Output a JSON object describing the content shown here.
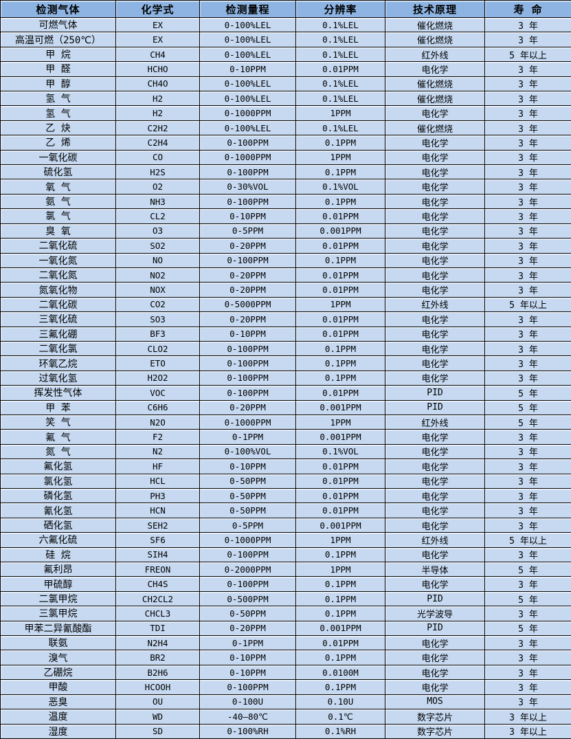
{
  "colors": {
    "header_bg": "#8db4e2",
    "row_bg": "#c6d9f1",
    "grid": "#000000",
    "text": "#000000"
  },
  "table": {
    "columns": [
      "检测气体",
      "化学式",
      "检测量程",
      "分辨率",
      "技术原理",
      "寿 命"
    ],
    "rows": [
      [
        "可燃气体",
        "EX",
        "0-100%LEL",
        "0.1%LEL",
        "催化燃烧",
        "3 年"
      ],
      [
        "高温可燃（250℃）",
        "EX",
        "0-100%LEL",
        "0.1%LEL",
        "催化燃烧",
        "3 年"
      ],
      [
        "甲 烷",
        "CH4",
        "0-100%LEL",
        "0.1%LEL",
        "红外线",
        "5 年以上"
      ],
      [
        "甲 醛",
        "HCHO",
        "0-10PPM",
        "0.01PPM",
        "电化学",
        "3 年"
      ],
      [
        "甲 醇",
        "CH4O",
        "0-100%LEL",
        "0.1%LEL",
        "催化燃烧",
        "3 年"
      ],
      [
        "氢 气",
        "H2",
        "0-100%LEL",
        "0.1%LEL",
        "催化燃烧",
        "3 年"
      ],
      [
        "氢 气",
        "H2",
        "0-1000PPM",
        "1PPM",
        "电化学",
        "3 年"
      ],
      [
        "乙 炔",
        "C2H2",
        "0-100%LEL",
        "0.1%LEL",
        "催化燃烧",
        "3 年"
      ],
      [
        "乙 烯",
        "C2H4",
        "0-100PPM",
        "0.1PPM",
        "电化学",
        "3 年"
      ],
      [
        "一氧化碳",
        "CO",
        "0-1000PPM",
        "1PPM",
        "电化学",
        "3 年"
      ],
      [
        "硫化氢",
        "H2S",
        "0-100PPM",
        "0.1PPM",
        "电化学",
        "3 年"
      ],
      [
        "氧 气",
        "O2",
        "0-30%VOL",
        "0.1%VOL",
        "电化学",
        "3 年"
      ],
      [
        "氨 气",
        "NH3",
        "0-100PPM",
        "0.1PPM",
        "电化学",
        "3 年"
      ],
      [
        "氯 气",
        "CL2",
        "0-10PPM",
        "0.01PPM",
        "电化学",
        "3 年"
      ],
      [
        "臭 氧",
        "O3",
        "0-5PPM",
        "0.001PPM",
        "电化学",
        "3 年"
      ],
      [
        "二氧化硫",
        "SO2",
        "0-20PPM",
        "0.01PPM",
        "电化学",
        "3 年"
      ],
      [
        "一氧化氮",
        "NO",
        "0-100PPM",
        "0.1PPM",
        "电化学",
        "3 年"
      ],
      [
        "二氧化氮",
        "NO2",
        "0-20PPM",
        "0.01PPM",
        "电化学",
        "3 年"
      ],
      [
        "氮氧化物",
        "NOX",
        "0-20PPM",
        "0.01PPM",
        "电化学",
        "3 年"
      ],
      [
        "二氧化碳",
        "CO2",
        "0-5000PPM",
        "1PPM",
        "红外线",
        "5 年以上"
      ],
      [
        "三氧化硫",
        "SO3",
        "0-20PPM",
        "0.01PPM",
        "电化学",
        "3 年"
      ],
      [
        "三氟化硼",
        "BF3",
        "0-10PPM",
        "0.01PPM",
        "电化学",
        "3 年"
      ],
      [
        "二氧化氯",
        "CLO2",
        "0-100PPM",
        "0.1PPM",
        "电化学",
        "3 年"
      ],
      [
        "环氧乙烷",
        "ETO",
        "0-100PPM",
        "0.1PPM",
        "电化学",
        "3 年"
      ],
      [
        "过氧化氢",
        "H2O2",
        "0-100PPM",
        "0.1PPM",
        "电化学",
        "3 年"
      ],
      [
        "挥发性气体",
        "VOC",
        "0-100PPM",
        "0.01PPM",
        "PID",
        "5 年"
      ],
      [
        "甲 苯",
        "C6H6",
        "0-20PPM",
        "0.001PPM",
        "PID",
        "5 年"
      ],
      [
        "笑 气",
        "N2O",
        "0-1000PPM",
        "1PPM",
        "红外线",
        "5 年"
      ],
      [
        "氟 气",
        "F2",
        "0-1PPM",
        "0.001PPM",
        "电化学",
        "3 年"
      ],
      [
        "氮 气",
        "N2",
        "0-100%VOL",
        "0.1%VOL",
        "电化学",
        "3 年"
      ],
      [
        "氟化氢",
        "HF",
        "0-10PPM",
        "0.01PPM",
        "电化学",
        "3 年"
      ],
      [
        "氯化氢",
        "HCL",
        "0-50PPM",
        "0.01PPM",
        "电化学",
        "3 年"
      ],
      [
        "磷化氢",
        "PH3",
        "0-50PPM",
        "0.01PPM",
        "电化学",
        "3 年"
      ],
      [
        "氰化氢",
        "HCN",
        "0-50PPM",
        "0.01PPM",
        "电化学",
        "3 年"
      ],
      [
        "硒化氢",
        "SEH2",
        "0-5PPM",
        "0.001PPM",
        "电化学",
        "3 年"
      ],
      [
        "六氟化硫",
        "SF6",
        "0-1000PPM",
        "1PPM",
        "红外线",
        "5 年以上"
      ],
      [
        "硅 烷",
        "SIH4",
        "0-100PPM",
        "0.1PPM",
        "电化学",
        "3 年"
      ],
      [
        "氟利昂",
        "FREON",
        "0-2000PPM",
        "1PPM",
        "半导体",
        "5 年"
      ],
      [
        "甲硫醇",
        "CH4S",
        "0-100PPM",
        "0.1PPM",
        "电化学",
        "3 年"
      ],
      [
        "二氯甲烷",
        "CH2CL2",
        "0-500PPM",
        "0.1PPM",
        "PID",
        "5 年"
      ],
      [
        "三氯甲烷",
        "CHCL3",
        "0-50PPM",
        "0.1PPM",
        "光学波导",
        "3 年"
      ],
      [
        "甲苯二异氰酸酯",
        "TDI",
        "0-20PPM",
        "0.001PPM",
        "PID",
        "5 年"
      ],
      [
        "联氨",
        "N2H4",
        "0-1PPM",
        "0.01PPM",
        "电化学",
        "3 年"
      ],
      [
        "溴气",
        "BR2",
        "0-10PPM",
        "0.1PPM",
        "电化学",
        "3 年"
      ],
      [
        "乙硼烷",
        "B2H6",
        "0-10PPM",
        "0.0100M",
        "电化学",
        "3 年"
      ],
      [
        "甲酸",
        "HCOOH",
        "0-100PPM",
        "0.1PPM",
        "电化学",
        "3 年"
      ],
      [
        "恶臭",
        "OU",
        "0-100U",
        "0.10U",
        "MOS",
        "3 年"
      ],
      [
        "温度",
        "WD",
        "-40—80℃",
        "0.1℃",
        "数字芯片",
        "3 年以上"
      ],
      [
        "湿度",
        "SD",
        "0-100%RH",
        "0.1%RH",
        "数字芯片",
        "3 年以上"
      ]
    ]
  }
}
